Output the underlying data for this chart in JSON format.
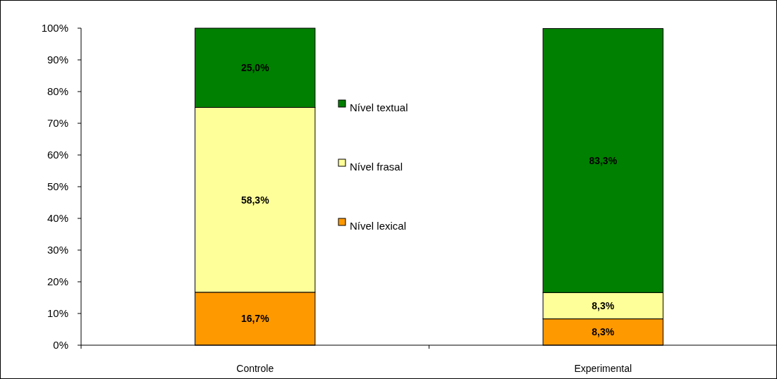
{
  "chart_data": {
    "type": "bar",
    "stacked": true,
    "categories": [
      "Controle",
      "Experimental"
    ],
    "series": [
      {
        "name": "Nível lexical",
        "color": "#ff9900",
        "values": [
          16.7,
          8.3
        ],
        "value_labels": [
          "16,7%",
          "8,3%"
        ]
      },
      {
        "name": "Nível frasal",
        "color": "#ffff99",
        "values": [
          58.3,
          8.3
        ],
        "value_labels": [
          "58,3%",
          "8,3%"
        ]
      },
      {
        "name": "Nível textual",
        "color": "#008000",
        "values": [
          25.0,
          83.3
        ],
        "value_labels": [
          "25,0%",
          "83,3%"
        ]
      }
    ],
    "ylim": [
      0,
      100
    ],
    "yticks": [
      {
        "value": 0,
        "label": "0%"
      },
      {
        "value": 10,
        "label": "10%"
      },
      {
        "value": 20,
        "label": "20%"
      },
      {
        "value": 30,
        "label": "30%"
      },
      {
        "value": 40,
        "label": "40%"
      },
      {
        "value": 50,
        "label": "50%"
      },
      {
        "value": 60,
        "label": "60%"
      },
      {
        "value": 70,
        "label": "70%"
      },
      {
        "value": 80,
        "label": "80%"
      },
      {
        "value": 90,
        "label": "90%"
      },
      {
        "value": 100,
        "label": "100%"
      }
    ],
    "grid": false,
    "legend": "top"
  }
}
